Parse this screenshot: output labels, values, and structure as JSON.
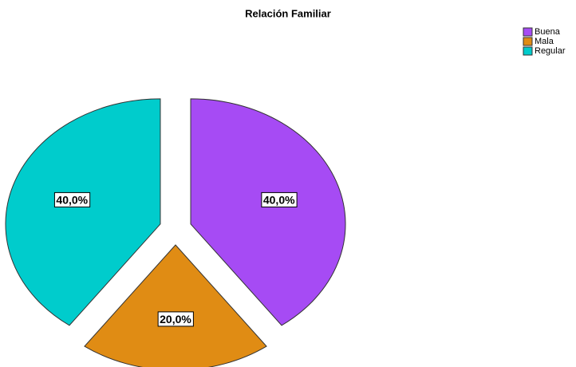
{
  "chart_data": {
    "type": "pie",
    "title": "Relación Familiar",
    "categories": [
      "Buena",
      "Mala",
      "Regular"
    ],
    "values": [
      40,
      20,
      40
    ],
    "value_labels": [
      "40,0%",
      "20,0%",
      "40,0%"
    ],
    "colors": [
      "#a64bf4",
      "#e08c14",
      "#00cccc"
    ],
    "legend": "top-right"
  }
}
